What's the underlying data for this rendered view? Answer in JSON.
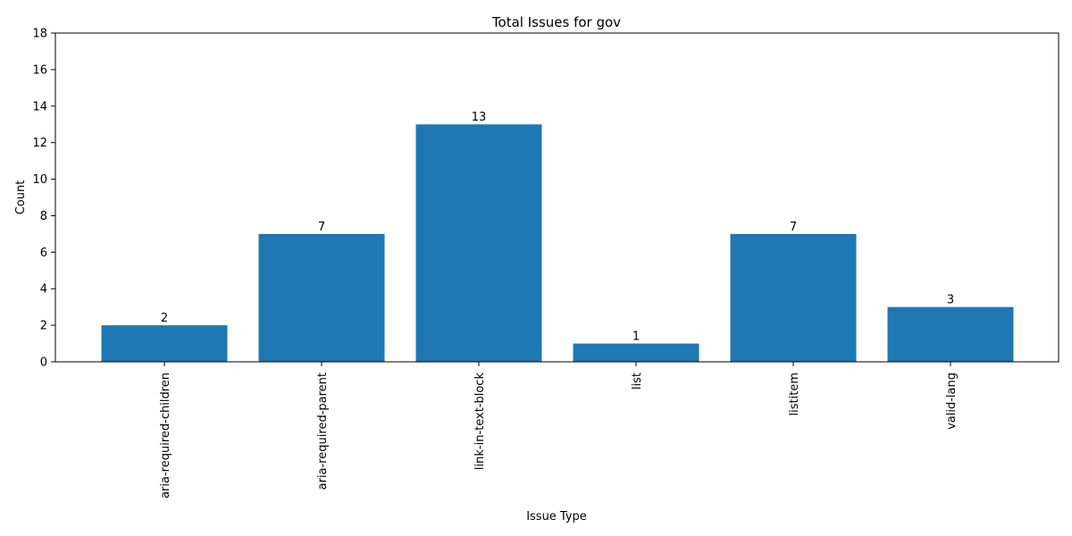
{
  "chart_data": {
    "type": "bar",
    "title": "Total Issues for gov",
    "xlabel": "Issue Type",
    "ylabel": "Count",
    "categories": [
      "aria-required-children",
      "aria-required-parent",
      "link-in-text-block",
      "list",
      "listitem",
      "valid-lang"
    ],
    "values": [
      2,
      7,
      13,
      1,
      7,
      3
    ],
    "ylim": [
      0,
      18
    ],
    "yticks": [
      0,
      2,
      4,
      6,
      8,
      10,
      12,
      14,
      16,
      18
    ],
    "grid": false,
    "bar_color": "#1f77b4",
    "show_value_labels": true
  }
}
